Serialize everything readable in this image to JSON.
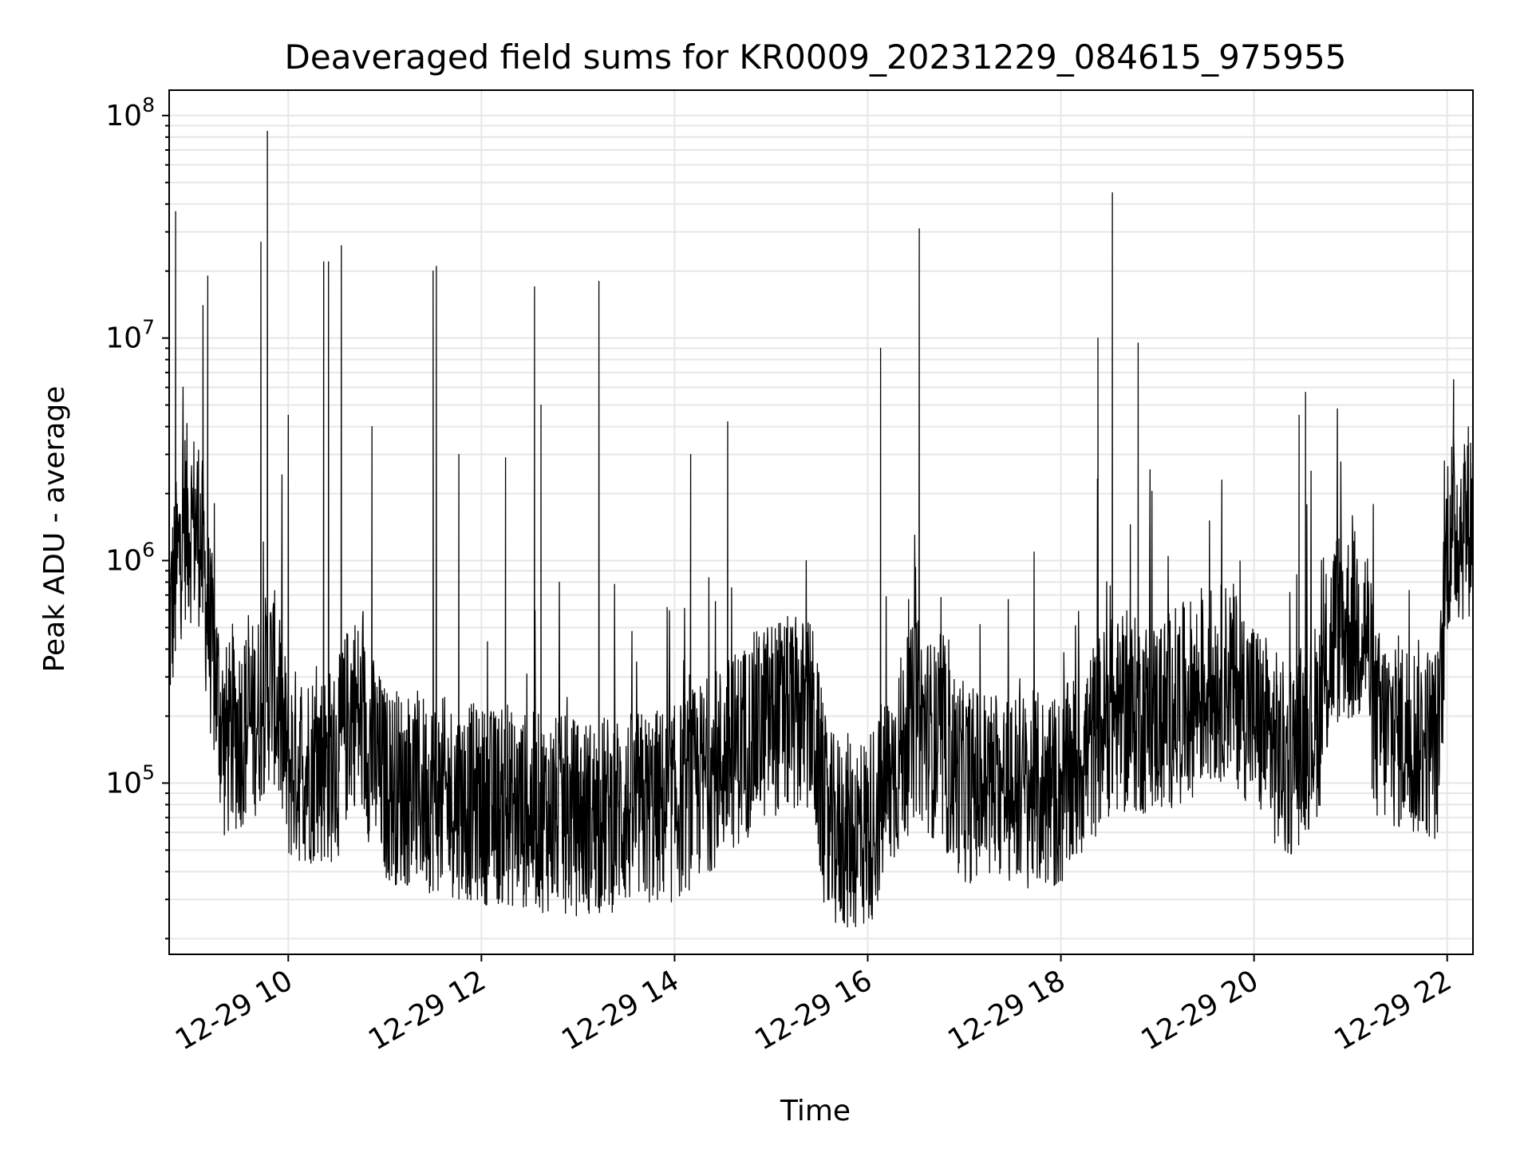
{
  "chart_data": {
    "type": "line",
    "title": "Deaveraged field sums for KR0009_20231229_084615_975955",
    "xlabel": "Time",
    "ylabel": "Peak ADU - average",
    "yscale": "log",
    "ylim": [
      17000,
      130000000
    ],
    "xlim": [
      "2023-12-29 08:46",
      "2023-12-29 22:16"
    ],
    "x_ticks": [
      "12-29 10",
      "12-29 12",
      "12-29 14",
      "12-29 16",
      "12-29 18",
      "12-29 20",
      "12-29 22"
    ],
    "y_ticks": [
      {
        "base": "10",
        "exp": "5",
        "value": 100000
      },
      {
        "base": "10",
        "exp": "6",
        "value": 1000000
      },
      {
        "base": "10",
        "exp": "7",
        "value": 10000000
      },
      {
        "base": "10",
        "exp": "8",
        "value": 100000000
      }
    ],
    "grid": true,
    "line_color": "#000000",
    "grid_color": "#e6e6e6",
    "series": [
      {
        "baseline": [
          {
            "t": "2023-12-29 08:46",
            "v": 500000
          },
          {
            "t": "2023-12-29 08:55",
            "v": 1500000
          },
          {
            "t": "2023-12-29 09:05",
            "v": 1400000
          },
          {
            "t": "2023-12-29 09:10",
            "v": 550000
          },
          {
            "t": "2023-12-29 09:20",
            "v": 150000
          },
          {
            "t": "2023-12-29 09:40",
            "v": 200000
          },
          {
            "t": "2023-12-29 09:50",
            "v": 300000
          },
          {
            "t": "2023-12-29 10:00",
            "v": 120000
          },
          {
            "t": "2023-12-29 10:30",
            "v": 120000
          },
          {
            "t": "2023-12-29 10:40",
            "v": 230000
          },
          {
            "t": "2023-12-29 11:00",
            "v": 100000
          },
          {
            "t": "2023-12-29 12:00",
            "v": 80000
          },
          {
            "t": "2023-12-29 13:00",
            "v": 70000
          },
          {
            "t": "2023-12-29 14:00",
            "v": 80000
          },
          {
            "t": "2023-12-29 15:00",
            "v": 200000
          },
          {
            "t": "2023-12-29 15:25",
            "v": 200000
          },
          {
            "t": "2023-12-29 15:35",
            "v": 60000
          },
          {
            "t": "2023-12-29 16:00",
            "v": 60000
          },
          {
            "t": "2023-12-29 16:30",
            "v": 200000
          },
          {
            "t": "2023-12-29 17:00",
            "v": 100000
          },
          {
            "t": "2023-12-29 18:00",
            "v": 90000
          },
          {
            "t": "2023-12-29 18:30",
            "v": 200000
          },
          {
            "t": "2023-12-29 19:00",
            "v": 200000
          },
          {
            "t": "2023-12-29 19:45",
            "v": 300000
          },
          {
            "t": "2023-12-29 20:20",
            "v": 120000
          },
          {
            "t": "2023-12-29 20:40",
            "v": 200000
          },
          {
            "t": "2023-12-29 20:50",
            "v": 500000
          },
          {
            "t": "2023-12-29 21:10",
            "v": 500000
          },
          {
            "t": "2023-12-29 21:15",
            "v": 180000
          },
          {
            "t": "2023-12-29 21:55",
            "v": 150000
          },
          {
            "t": "2023-12-29 22:00",
            "v": 1300000
          },
          {
            "t": "2023-12-29 22:16",
            "v": 1600000
          }
        ],
        "spikes": [
          {
            "t": "2023-12-29 08:50",
            "v": 37000000
          },
          {
            "t": "2023-12-29 09:07",
            "v": 14000000
          },
          {
            "t": "2023-12-29 09:10",
            "v": 19000000
          },
          {
            "t": "2023-12-29 09:43",
            "v": 27000000
          },
          {
            "t": "2023-12-29 09:47",
            "v": 85000000
          },
          {
            "t": "2023-12-29 10:00",
            "v": 4500000
          },
          {
            "t": "2023-12-29 10:22",
            "v": 22000000
          },
          {
            "t": "2023-12-29 10:25",
            "v": 22000000
          },
          {
            "t": "2023-12-29 10:33",
            "v": 26000000
          },
          {
            "t": "2023-12-29 10:52",
            "v": 4000000
          },
          {
            "t": "2023-12-29 11:30",
            "v": 20000000
          },
          {
            "t": "2023-12-29 11:32",
            "v": 21000000
          },
          {
            "t": "2023-12-29 11:46",
            "v": 3000000
          },
          {
            "t": "2023-12-29 12:15",
            "v": 2900000
          },
          {
            "t": "2023-12-29 12:33",
            "v": 17000000
          },
          {
            "t": "2023-12-29 12:37",
            "v": 5000000
          },
          {
            "t": "2023-12-29 13:13",
            "v": 18000000
          },
          {
            "t": "2023-12-29 14:10",
            "v": 3000000
          },
          {
            "t": "2023-12-29 14:33",
            "v": 4200000
          },
          {
            "t": "2023-12-29 16:08",
            "v": 9000000
          },
          {
            "t": "2023-12-29 16:32",
            "v": 31000000
          },
          {
            "t": "2023-12-29 18:23",
            "v": 10000000
          },
          {
            "t": "2023-12-29 18:32",
            "v": 45000000
          },
          {
            "t": "2023-12-29 18:48",
            "v": 9500000
          },
          {
            "t": "2023-12-29 19:40",
            "v": 2300000
          },
          {
            "t": "2023-12-29 20:28",
            "v": 4500000
          },
          {
            "t": "2023-12-29 20:32",
            "v": 5700000
          },
          {
            "t": "2023-12-29 22:04",
            "v": 6500000
          }
        ]
      }
    ]
  }
}
